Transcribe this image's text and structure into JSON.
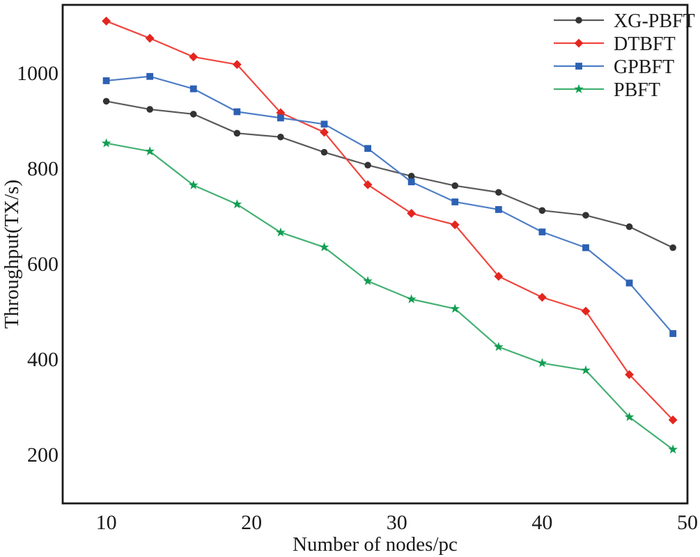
{
  "chart_data": {
    "type": "line",
    "title": "",
    "xlabel": "Number of nodes/pc",
    "ylabel": "Throughput(TX/s)",
    "x": [
      10,
      13,
      16,
      19,
      22,
      25,
      28,
      31,
      34,
      37,
      40,
      43,
      46,
      49
    ],
    "xticks": [
      10,
      20,
      30,
      40,
      50
    ],
    "yticks": [
      200,
      400,
      600,
      800,
      1000
    ],
    "xlim": [
      7,
      50
    ],
    "ylim": [
      98,
      1143
    ],
    "grid": false,
    "legend_position": "top-right",
    "frame_color": "#1a1a1a",
    "series": [
      {
        "name": "XG-PBFT",
        "marker": "circle",
        "line_color": "#5a5a5a",
        "marker_color": "#333333",
        "values": [
          941,
          924,
          914,
          874,
          866,
          834,
          807,
          784,
          764,
          750,
          712,
          702,
          678,
          634
        ]
      },
      {
        "name": "DTBFT",
        "marker": "diamond",
        "line_color": "#f0453e",
        "marker_color": "#e3261f",
        "values": [
          1109,
          1073,
          1034,
          1018,
          917,
          876,
          766,
          706,
          682,
          574,
          530,
          501,
          368,
          273
        ]
      },
      {
        "name": "GPBFT",
        "marker": "square",
        "line_color": "#4d7ec6",
        "marker_color": "#2d61b3",
        "values": [
          984,
          993,
          967,
          919,
          906,
          893,
          842,
          772,
          730,
          714,
          667,
          634,
          560,
          454
        ]
      },
      {
        "name": "PBFT",
        "marker": "star",
        "line_color": "#43b072",
        "marker_color": "#119e52",
        "values": [
          853,
          836,
          765,
          725,
          666,
          635,
          564,
          526,
          506,
          426,
          392,
          377,
          279,
          211
        ]
      }
    ]
  }
}
